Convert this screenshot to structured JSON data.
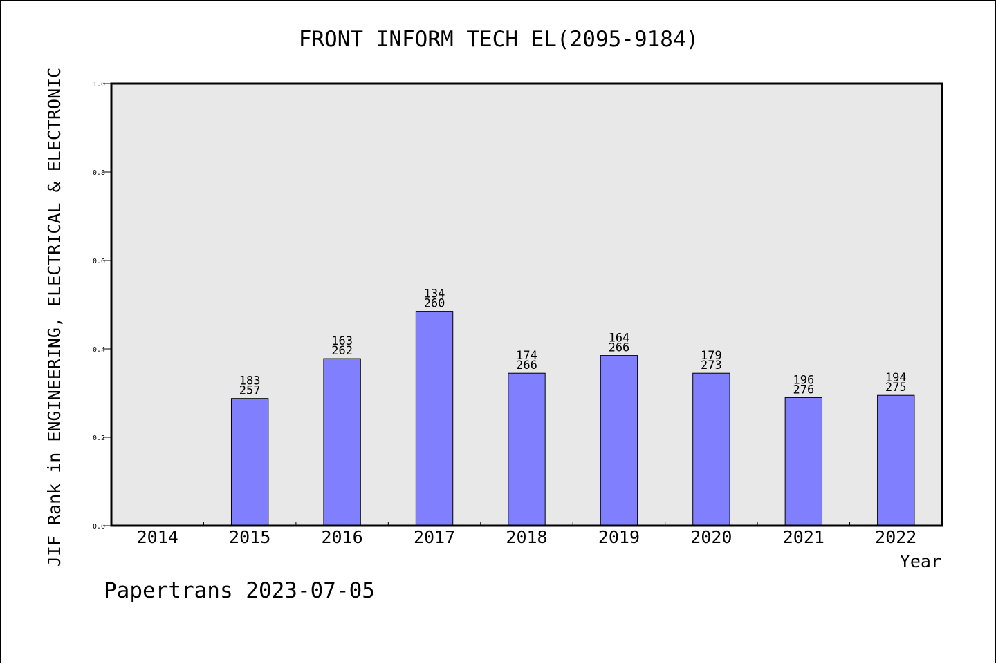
{
  "chart_data": {
    "type": "bar",
    "title": "FRONT INFORM TECH EL(2095-9184)",
    "xlabel": "Year",
    "ylabel": "JIF Rank in ENGINEERING, ELECTRICAL & ELECTRONIC",
    "ylim": [
      0,
      1.0
    ],
    "yticks": [
      "0.0",
      "0.2",
      "0.4",
      "0.6",
      "0.8",
      "1.0"
    ],
    "categories": [
      "2014",
      "2015",
      "2016",
      "2017",
      "2018",
      "2019",
      "2020",
      "2021",
      "2022"
    ],
    "values": [
      null,
      0.288,
      0.378,
      0.485,
      0.345,
      0.385,
      0.345,
      0.29,
      0.295
    ],
    "rank_labels": [
      null,
      [
        "183",
        "257"
      ],
      [
        "163",
        "262"
      ],
      [
        "134",
        "260"
      ],
      [
        "174",
        "266"
      ],
      [
        "164",
        "266"
      ],
      [
        "179",
        "273"
      ],
      [
        "196",
        "276"
      ],
      [
        "194",
        "275"
      ]
    ],
    "bar_color": "#8080ff",
    "plot_background": "#e8e8e8",
    "grid": false,
    "legend": "none"
  },
  "footer": {
    "watermark": "Papertrans 2023-07-05"
  }
}
